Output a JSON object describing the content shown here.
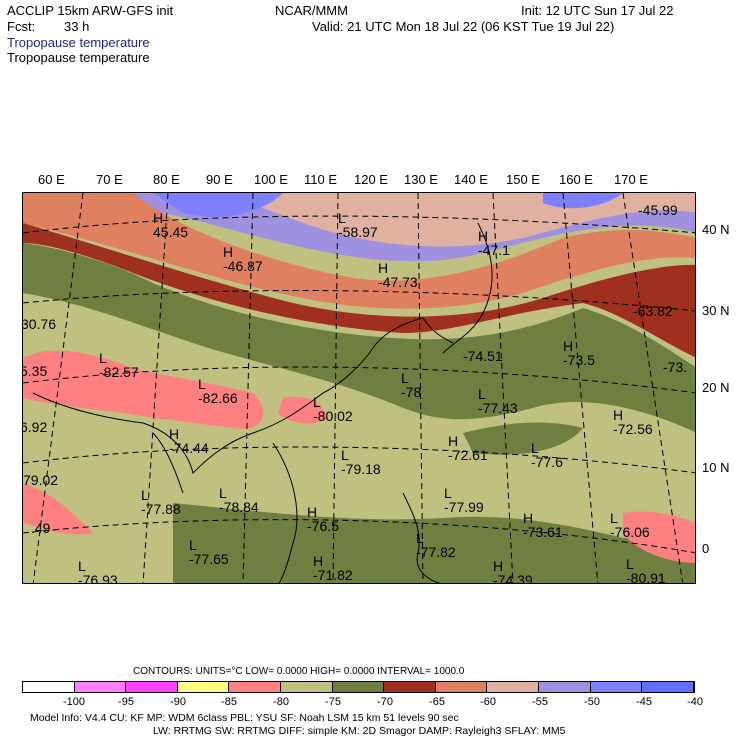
{
  "header": {
    "model": "ACCLIP 15km ARW-GFS init",
    "org": "NCAR/MMM",
    "init": "Init: 12 UTC Sun 17 Jul 22",
    "fcst_label": "Fcst:",
    "fcst_value": "33 h",
    "valid": "Valid: 21 UTC Mon 18 Jul 22 (06 KST Tue 19 Jul 22)",
    "field_title_1": "Tropopause temperature",
    "field_title_2": "Tropopause temperature"
  },
  "map": {
    "lon_labels": [
      "60 E",
      "70 E",
      "80 E",
      "90 E",
      "100 E",
      "110 E",
      "120 E",
      "130 E",
      "140 E",
      "150 E",
      "160 E",
      "170 E"
    ],
    "lat_labels": [
      "40 N",
      "30 N",
      "20 N",
      "10 N",
      "0"
    ],
    "values": [
      {
        "id": "v1",
        "text": "45.45",
        "marker": "H"
      },
      {
        "id": "v2",
        "text": "-58.97",
        "marker": "L"
      },
      {
        "id": "v3",
        "text": "-46.87",
        "marker": "H"
      },
      {
        "id": "v4",
        "text": "-47.73",
        "marker": "H"
      },
      {
        "id": "v5",
        "text": "-47.1",
        "marker": "H"
      },
      {
        "id": "v6",
        "text": "-45.99",
        "marker": ""
      },
      {
        "id": "v7",
        "text": "-63.82",
        "marker": ""
      },
      {
        "id": "v8",
        "text": "30.76",
        "marker": ""
      },
      {
        "id": "v9",
        "text": "-82.57",
        "marker": "L"
      },
      {
        "id": "v10",
        "text": "-74.51",
        "marker": ""
      },
      {
        "id": "v11",
        "text": "-73.5",
        "marker": "H"
      },
      {
        "id": "v12",
        "text": "-73.",
        "marker": ""
      },
      {
        "id": "v13",
        "text": "5.35",
        "marker": ""
      },
      {
        "id": "v14",
        "text": "-82.66",
        "marker": "L"
      },
      {
        "id": "v15",
        "text": "-78",
        "marker": "L"
      },
      {
        "id": "v16",
        "text": "-77.43",
        "marker": "L"
      },
      {
        "id": "v17",
        "text": "-80.02",
        "marker": "L"
      },
      {
        "id": "v18",
        "text": "-72.56",
        "marker": "H"
      },
      {
        "id": "v19",
        "text": "6.92",
        "marker": ""
      },
      {
        "id": "v20",
        "text": "-74.44",
        "marker": "H"
      },
      {
        "id": "v21",
        "text": "-72.61",
        "marker": "H"
      },
      {
        "id": "v22",
        "text": "-79.18",
        "marker": "L"
      },
      {
        "id": "v23",
        "text": "-77.6",
        "marker": "L"
      },
      {
        "id": "v24",
        "text": "79.02",
        "marker": ""
      },
      {
        "id": "v25",
        "text": "-77.88",
        "marker": "L"
      },
      {
        "id": "v26",
        "text": "-78.84",
        "marker": "L"
      },
      {
        "id": "v27",
        "text": "-77.99",
        "marker": "L"
      },
      {
        "id": "v28",
        "text": ".49",
        "marker": ""
      },
      {
        "id": "v29",
        "text": "-76.5",
        "marker": "H"
      },
      {
        "id": "v30",
        "text": "-73.61",
        "marker": "H"
      },
      {
        "id": "v31",
        "text": "-76.06",
        "marker": "L"
      },
      {
        "id": "v32",
        "text": "-77.82",
        "marker": "L"
      },
      {
        "id": "v33",
        "text": "-77.65",
        "marker": "L"
      },
      {
        "id": "v34",
        "text": "-71.82",
        "marker": "H"
      },
      {
        "id": "v35",
        "text": "-74.39",
        "marker": "H"
      },
      {
        "id": "v36",
        "text": "-76.93",
        "marker": "L"
      },
      {
        "id": "v37",
        "text": "-80.91",
        "marker": "L"
      }
    ]
  },
  "legend": {
    "contours_line": "CONTOURS:  UNITS=°C  LOW=  0.0000        HIGH=  0.0000       INTERVAL=    1000.0",
    "colors": [
      "#ffffff",
      "#ff80ff",
      "#ff40ff",
      "#ffff80",
      "#ff8080",
      "#c0c080",
      "#6f7f3f",
      "#9f2f1f",
      "#df8060",
      "#e0b0a0",
      "#9f90e0",
      "#7f80ff",
      "#6070ff"
    ],
    "ticks": [
      "-100",
      "-95",
      "-90",
      "-85",
      "-80",
      "-75",
      "-70",
      "-65",
      "-60",
      "-55",
      "-50",
      "-45",
      "-40",
      "°C"
    ]
  },
  "footer": {
    "line1": "Model Info: V4.4       CU: KF       MP: WDM 6class  PBL: YSU       SF: Noah LSM       15 km    51 levels    90 sec",
    "line2": "LW: RRTMG    SW: RRTMG   DIFF: simple KM: 2D Smagor DAMP: Rayleigh3  SFLAY: MM5"
  }
}
